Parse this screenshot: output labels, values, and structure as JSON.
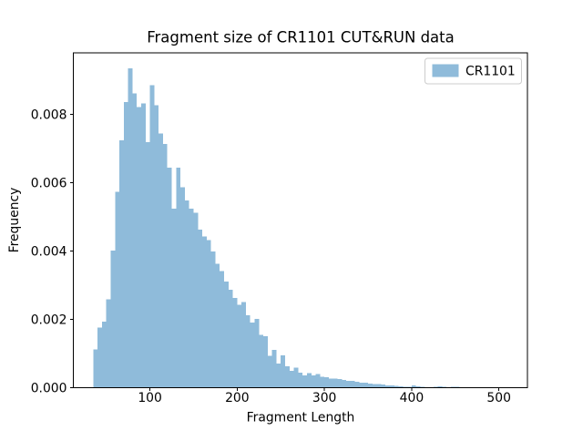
{
  "chart_data": {
    "type": "bar",
    "subtype": "histogram",
    "title": "Fragment size of CR1101 CUT&RUN data",
    "xlabel": "Fragment Length",
    "ylabel": "Frequency",
    "legend": {
      "label": "CR1101",
      "position": "upper right"
    },
    "bin_start": 35,
    "bin_width": 5,
    "values": [
      0.00112,
      0.00176,
      0.00193,
      0.00258,
      0.00401,
      0.00573,
      0.00724,
      0.00836,
      0.00934,
      0.00861,
      0.00821,
      0.00832,
      0.00719,
      0.00885,
      0.00827,
      0.00744,
      0.00713,
      0.00644,
      0.00524,
      0.00644,
      0.00587,
      0.00548,
      0.00524,
      0.00512,
      0.00462,
      0.00443,
      0.00432,
      0.00398,
      0.00362,
      0.00341,
      0.00311,
      0.00287,
      0.00262,
      0.00243,
      0.00251,
      0.00212,
      0.0019,
      0.00201,
      0.00155,
      0.0015,
      0.00093,
      0.00111,
      0.00071,
      0.00095,
      0.00062,
      0.00049,
      0.00058,
      0.00044,
      0.00036,
      0.00043,
      0.00036,
      0.0004,
      0.00032,
      0.0003,
      0.00027,
      0.00027,
      0.00025,
      0.00022,
      0.0002,
      0.0002,
      0.00017,
      0.00015,
      0.00014,
      0.00012,
      0.00011,
      0.0001,
      9e-05,
      7e-05,
      7e-05,
      5e-05,
      4e-05,
      3e-05,
      3e-05,
      6e-05,
      4e-05,
      2e-05,
      1e-05,
      1e-05,
      3e-05,
      4e-05,
      2e-05,
      1e-05,
      3e-05,
      2e-05
    ],
    "xlim": [
      12.2,
      532.7
    ],
    "ylim": [
      0,
      0.0098
    ],
    "xticks": {
      "positions": [
        100,
        200,
        300,
        400,
        500
      ],
      "labels": [
        "100",
        "200",
        "300",
        "400",
        "500"
      ]
    },
    "yticks": {
      "positions": [
        0,
        0.002,
        0.004,
        0.006,
        0.008
      ],
      "labels": [
        "0.000",
        "0.002",
        "0.004",
        "0.006",
        "0.008"
      ]
    },
    "grid": false,
    "colors": {
      "bar": "#8fbbda",
      "spine": "#000000",
      "tick": "#000000",
      "legend_border": "#cccccc",
      "legend_background": "#ffffff",
      "figure_background": "#ffffff"
    }
  }
}
